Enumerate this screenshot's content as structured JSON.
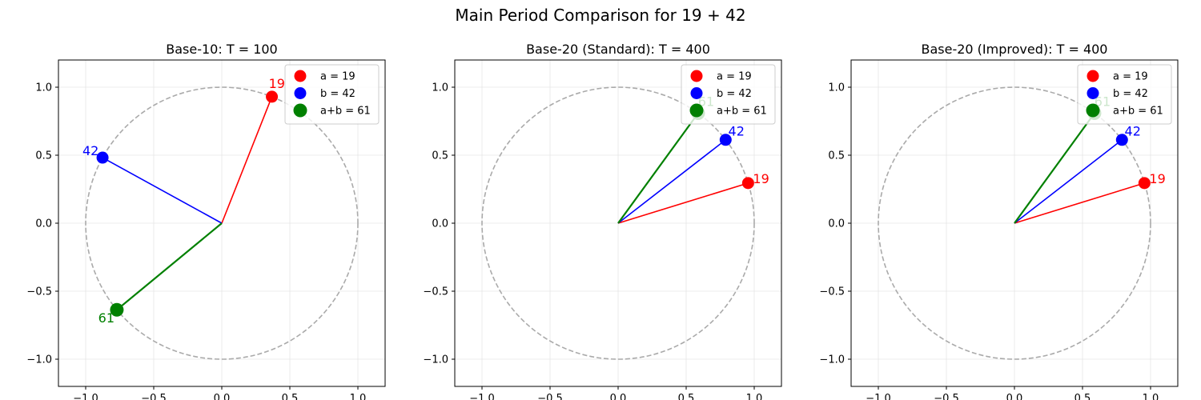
{
  "figure": {
    "suptitle": "Main Period Comparison for 19 + 42"
  },
  "colors": {
    "a": "#ff0000",
    "b": "#0000ff",
    "sum": "#008000",
    "circle": "#aaaaaa",
    "grid": "#e6e6e6",
    "axes": "#000000"
  },
  "chart_data": [
    {
      "type": "scatter",
      "title": "Base-10: T = 100",
      "xlim": [
        -1.2,
        1.2
      ],
      "ylim": [
        -1.2,
        1.2
      ],
      "xticks": [
        -1.0,
        -0.5,
        0.0,
        0.5,
        1.0
      ],
      "yticks": [
        -1.0,
        -0.5,
        0.0,
        0.5,
        1.0
      ],
      "grid": true,
      "legend_position": "upper right",
      "unit_circle": true,
      "series": [
        {
          "name": "a = 19",
          "key": "a",
          "label": "19",
          "x": 0.368,
          "y": 0.93
        },
        {
          "name": "b = 42",
          "key": "b",
          "label": "42",
          "x": -0.876,
          "y": 0.482
        },
        {
          "name": "a+b = 61",
          "key": "sum",
          "label": "61",
          "x": -0.771,
          "y": -0.637
        }
      ]
    },
    {
      "type": "scatter",
      "title": "Base-20 (Standard): T = 400",
      "xlim": [
        -1.2,
        1.2
      ],
      "ylim": [
        -1.2,
        1.2
      ],
      "xticks": [
        -1.0,
        -0.5,
        0.0,
        0.5,
        1.0
      ],
      "yticks": [
        -1.0,
        -0.5,
        0.0,
        0.5,
        1.0
      ],
      "grid": true,
      "legend_position": "upper right",
      "unit_circle": true,
      "series": [
        {
          "name": "a = 19",
          "key": "a",
          "label": "19",
          "x": 0.955,
          "y": 0.295
        },
        {
          "name": "b = 42",
          "key": "b",
          "label": "42",
          "x": 0.79,
          "y": 0.613
        },
        {
          "name": "a+b = 61",
          "key": "sum",
          "label": "61",
          "x": 0.588,
          "y": 0.809
        }
      ]
    },
    {
      "type": "scatter",
      "title": "Base-20 (Improved): T = 400",
      "xlim": [
        -1.2,
        1.2
      ],
      "ylim": [
        -1.2,
        1.2
      ],
      "xticks": [
        -1.0,
        -0.5,
        0.0,
        0.5,
        1.0
      ],
      "yticks": [
        -1.0,
        -0.5,
        0.0,
        0.5,
        1.0
      ],
      "grid": true,
      "legend_position": "upper right",
      "unit_circle": true,
      "series": [
        {
          "name": "a = 19",
          "key": "a",
          "label": "19",
          "x": 0.955,
          "y": 0.295
        },
        {
          "name": "b = 42",
          "key": "b",
          "label": "42",
          "x": 0.79,
          "y": 0.613
        },
        {
          "name": "a+b = 61",
          "key": "sum",
          "label": "61",
          "x": 0.588,
          "y": 0.809
        }
      ]
    }
  ]
}
